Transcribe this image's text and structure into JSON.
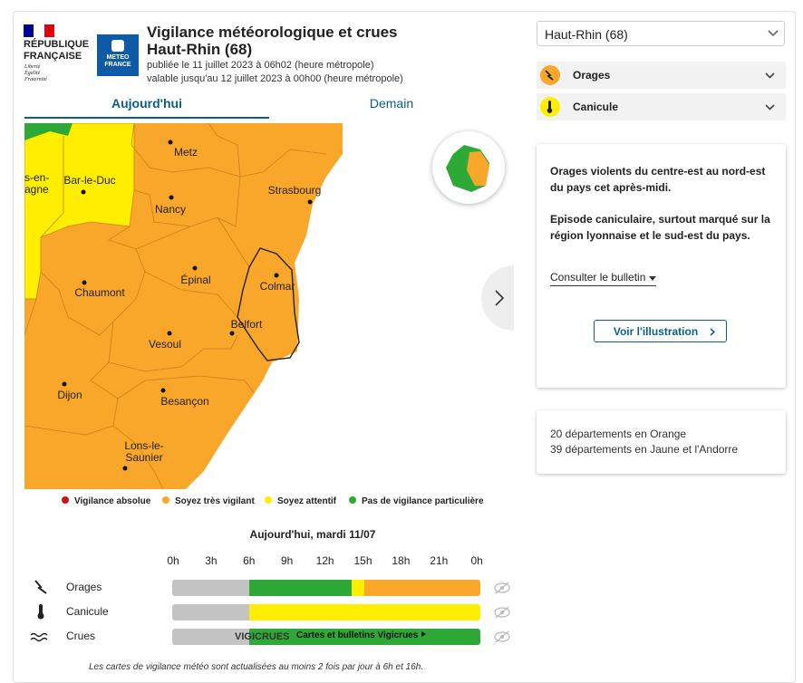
{
  "header": {
    "republique": [
      "RÉPUBLIQUE",
      "FRANÇAISE"
    ],
    "devise": [
      "Liberté",
      "Égalité",
      "Fraternité"
    ],
    "meteo_logo": [
      "METEO",
      "FRANCE"
    ],
    "title": "Vigilance météorologique et crues",
    "subtitle": "Haut-Rhin (68)",
    "published": "publiée le 11 juillet 2023 à 06h02 (heure métropole)",
    "valid": "valable jusqu'au 12 juillet 2023 à 00h00 (heure métropole)"
  },
  "tabs": [
    "Aujourd'hui",
    "Demain"
  ],
  "map": {
    "cities": [
      {
        "lines": [
          "Metz"
        ]
      },
      {
        "lines": [
          "Bar-le-Duc"
        ]
      },
      {
        "lines": [
          "s-en-",
          "agne"
        ]
      },
      {
        "lines": [
          "Nancy"
        ]
      },
      {
        "lines": [
          "Strasbourg"
        ]
      },
      {
        "lines": [
          "Chaumont"
        ]
      },
      {
        "lines": [
          "Épinal"
        ]
      },
      {
        "lines": [
          "Colmar"
        ]
      },
      {
        "lines": [
          "Belfort"
        ]
      },
      {
        "lines": [
          "Vesoul"
        ]
      },
      {
        "lines": [
          "Dijon"
        ]
      },
      {
        "lines": [
          "Besançon"
        ]
      },
      {
        "lines": [
          "Lons-le-",
          "Saunier"
        ]
      }
    ]
  },
  "legend": [
    {
      "label": "Vigilance absolue",
      "color": "#d0111b"
    },
    {
      "label": "Soyez très vigilant",
      "color": "#f9a72b"
    },
    {
      "label": "Soyez attentif",
      "color": "#ffee00"
    },
    {
      "label": "Pas de vigilance particulière",
      "color": "#2ea836"
    }
  ],
  "timeline": {
    "title": "Aujourd'hui, mardi 11/07",
    "hours": [
      "0h",
      "3h",
      "6h",
      "9h",
      "12h",
      "15h",
      "18h",
      "21h",
      "0h"
    ],
    "rows": [
      "Orages",
      "Canicule",
      "Crues"
    ],
    "vigicrues_logo": "VIGICRUES",
    "vigicrues_link": "Cartes et bulletins Vigicrues"
  },
  "footer_note": "Les cartes de vigilance météo sont actualisées au moins 2 fois par jour à 6h et 16h.",
  "sidebar": {
    "select": "Haut-Rhin (68)",
    "phenomena": [
      "Orages",
      "Canicule"
    ],
    "bulletin": {
      "paragraphs": [
        "Orages violents du centre-est au nord-est du pays cet après-midi.",
        "Episode caniculaire, surtout marqué sur la région lyonnaise et le sud-est du pays."
      ],
      "link": "Consulter le bulletin",
      "button": "Voir l'illustration"
    },
    "summary": [
      "20 départements en Orange",
      "39 départements en Jaune et l'Andorre"
    ]
  }
}
